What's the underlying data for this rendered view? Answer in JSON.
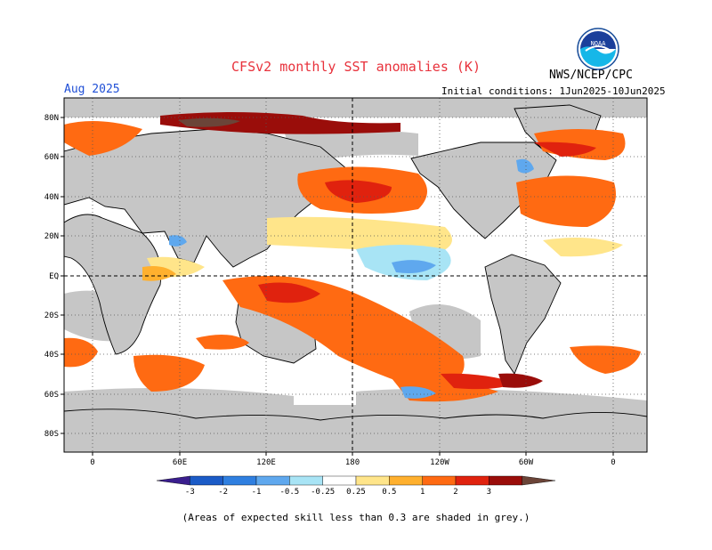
{
  "header": {
    "title": "CFSv2 monthly SST anomalies (K)",
    "valid_month": "Aug 2025",
    "agency": "NWS/NCEP/CPC",
    "initial_conditions": "Initial conditions: 1Jun2025-10Jun2025",
    "logo_text": "NOAA"
  },
  "map": {
    "lat_labels": [
      "80N",
      "60N",
      "40N",
      "20N",
      "EQ",
      "20S",
      "40S",
      "60S",
      "80S"
    ],
    "lon_labels": [
      "0",
      "60E",
      "120E",
      "180",
      "120W",
      "60W",
      "0"
    ],
    "colors": {
      "land": "#c6c6c6",
      "low_skill": "#c6c6c6",
      "ocean_neutral": "#ffffff",
      "coast": "#000000",
      "grid": "#555555"
    }
  },
  "colorbar": {
    "ticks": [
      "-3",
      "-2",
      "-1",
      "-0.5",
      "-0.25",
      "0.25",
      "0.5",
      "1",
      "2",
      "3"
    ],
    "colors": [
      "#3a1e8e",
      "#1b5bc7",
      "#2f7fe0",
      "#5fa8ee",
      "#a8e4f5",
      "#ffffff",
      "#ffe58a",
      "#ffb02e",
      "#ff6a12",
      "#e0220e",
      "#9a0d0a",
      "#6b4438"
    ]
  },
  "footnote": "(Areas of expected skill less than 0.3 are shaded in grey.)"
}
